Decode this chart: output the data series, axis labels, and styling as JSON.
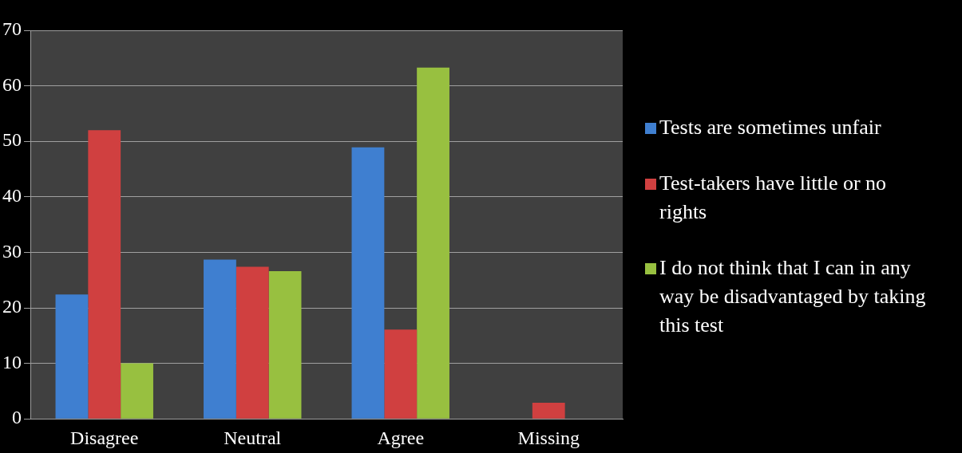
{
  "chart_data": {
    "type": "bar",
    "categories": [
      "Disagree",
      "Neutral",
      "Agree",
      "Missing"
    ],
    "series": [
      {
        "name": "Tests are sometimes unfair",
        "color": "#3f7fd0",
        "values": [
          22.4,
          28.7,
          48.9,
          0
        ]
      },
      {
        "name": "Test-takers have little or no rights",
        "color": "#d04040",
        "values": [
          52,
          27.4,
          16.1,
          2.9
        ]
      },
      {
        "name": "I do not think that I can in any way be disadvantaged by taking this test",
        "color": "#98c040",
        "values": [
          10,
          26.6,
          63.3,
          0
        ]
      }
    ],
    "ylim": [
      0,
      70
    ],
    "yticks": [
      0,
      10,
      20,
      30,
      40,
      50,
      60,
      70
    ],
    "grid": "y",
    "legend": "right"
  }
}
